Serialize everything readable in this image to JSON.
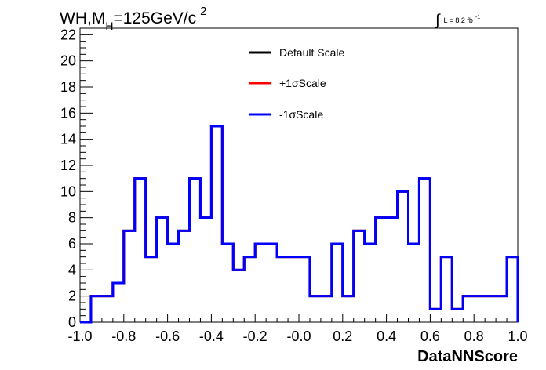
{
  "chart_data": {
    "type": "line",
    "title": {
      "main": "WH,M",
      "subscript": "H",
      "rest": "=125GeV/c",
      "superscript": "2"
    },
    "luminosity": {
      "integral_symbol": "∫",
      "text": "L = 8.2 fb",
      "superscript": "-1"
    },
    "xlabel": "DataNNScore",
    "ylabel": "",
    "xlim": [
      -1.0,
      1.0
    ],
    "ylim": [
      0,
      22.5
    ],
    "x_ticks": [
      "-1.0",
      "-0.8",
      "-0.6",
      "-0.4",
      "-0.2",
      "-0.0",
      "0.2",
      "0.4",
      "0.6",
      "0.8",
      "1.0"
    ],
    "y_ticks": [
      "0",
      "2",
      "4",
      "6",
      "8",
      "10",
      "12",
      "14",
      "16",
      "18",
      "20",
      "22"
    ],
    "grid": false,
    "legend_position": "top-center",
    "bin_edges": [
      -1.0,
      -0.95,
      -0.9,
      -0.85,
      -0.8,
      -0.75,
      -0.7,
      -0.65,
      -0.6,
      -0.55,
      -0.5,
      -0.45,
      -0.4,
      -0.35,
      -0.3,
      -0.25,
      -0.2,
      -0.15,
      -0.1,
      -0.05,
      0.0,
      0.05,
      0.1,
      0.15,
      0.2,
      0.25,
      0.3,
      0.35,
      0.4,
      0.45,
      0.5,
      0.55,
      0.6,
      0.65,
      0.7,
      0.75,
      0.8,
      0.85,
      0.9,
      0.95,
      1.0
    ],
    "series": [
      {
        "name": "Default Scale",
        "color": "#000000",
        "values": [
          0,
          2,
          2,
          3,
          7,
          11,
          5,
          8,
          6,
          7,
          11,
          8,
          15,
          6,
          4,
          5,
          6,
          6,
          5,
          5,
          5,
          2,
          2,
          6,
          2,
          7,
          6,
          8,
          8,
          10,
          6,
          11,
          1,
          5,
          1,
          2,
          2,
          2,
          2,
          5
        ]
      },
      {
        "name": "+1σScale",
        "color": "#ff0000",
        "values": [
          0,
          2,
          2,
          3,
          7,
          11,
          5,
          8,
          6,
          7,
          11,
          8,
          15,
          6,
          4,
          5,
          6,
          6,
          5,
          5,
          5,
          2,
          2,
          6,
          2,
          7,
          6,
          8,
          8,
          10,
          6,
          11,
          1,
          5,
          1,
          2,
          2,
          2,
          2,
          5
        ]
      },
      {
        "name": "-1σScale",
        "color": "#0000ff",
        "values": [
          0,
          2,
          2,
          3,
          7,
          11,
          5,
          8,
          6,
          7,
          11,
          8,
          15,
          6,
          4,
          5,
          6,
          6,
          5,
          5,
          5,
          2,
          2,
          6,
          2,
          7,
          6,
          8,
          8,
          10,
          6,
          11,
          1,
          5,
          1,
          2,
          2,
          2,
          2,
          5
        ]
      }
    ]
  }
}
